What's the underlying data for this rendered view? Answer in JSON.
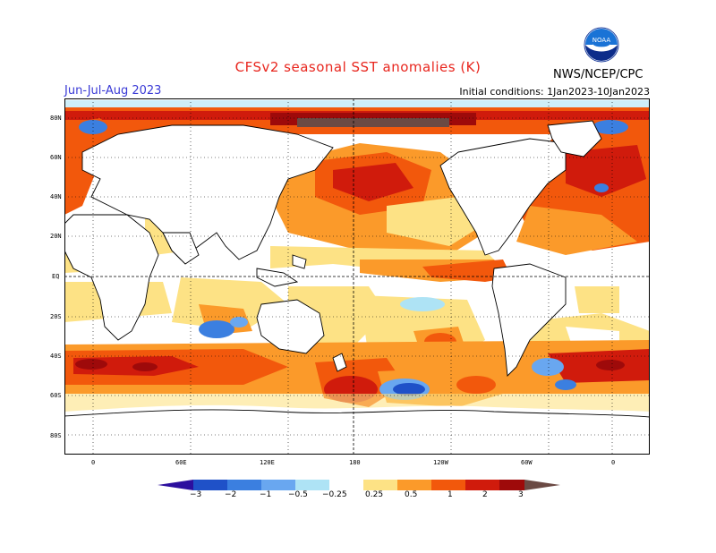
{
  "title": "CFSv2 seasonal SST anomalies (K)",
  "season": "Jun-Jul-Aug 2023",
  "initial_conditions": "Initial conditions: 1Jan2023-10Jan2023",
  "agency": "NWS/NCEP/CPC",
  "logo_text": "NOAA",
  "lat_labels": [
    "80N",
    "60N",
    "40N",
    "20N",
    "EQ",
    "20S",
    "40S",
    "60S",
    "80S"
  ],
  "lon_labels": [
    "0",
    "60E",
    "120E",
    "180",
    "120W",
    "60W",
    "0"
  ],
  "colorbar": {
    "labels": [
      "−3",
      "−2",
      "−1",
      "−0.5",
      "−0.25",
      "0.25",
      "0.5",
      "1",
      "2",
      "3"
    ],
    "colors": [
      "#2c0f9e",
      "#1f51c8",
      "#3b7fe0",
      "#69a7f0",
      "#aee3f5",
      "#ffffff",
      "#fde285",
      "#fb9a2a",
      "#f2580c",
      "#d01b0c",
      "#9e0a0a",
      "#6b4a44"
    ]
  },
  "colors": {
    "title": "#e8261e",
    "season": "#3a3ad6"
  }
}
